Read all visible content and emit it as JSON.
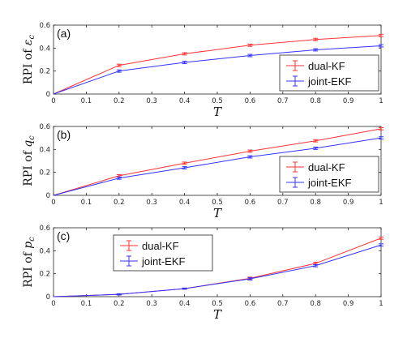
{
  "chart_data": [
    {
      "type": "line",
      "panel": "(a)",
      "ylabel_prefix": "RPI of ",
      "ylabel_symbol": "ε",
      "ylabel_sub": "c",
      "xlabel": "T",
      "x": [
        0,
        0.2,
        0.4,
        0.6,
        0.8,
        1
      ],
      "xticks": [
        "0",
        "0.1",
        "0.2",
        "0.3",
        "0.4",
        "0.5",
        "0.6",
        "0.7",
        "0.8",
        "0.9",
        "1"
      ],
      "xlim": [
        0,
        1
      ],
      "ylim": [
        0,
        0.6
      ],
      "yticks": [
        "0",
        "0.2",
        "0.4",
        "0.6"
      ],
      "legend_position": "lower-right",
      "series": [
        {
          "name": "dual-KF",
          "color": "#ff3333",
          "values": [
            0,
            0.25,
            0.35,
            0.425,
            0.475,
            0.51
          ],
          "err": [
            0,
            0.01,
            0.01,
            0.01,
            0.01,
            0.01
          ]
        },
        {
          "name": "joint-EKF",
          "color": "#3333ff",
          "values": [
            0,
            0.2,
            0.275,
            0.335,
            0.385,
            0.42
          ],
          "err": [
            0,
            0.01,
            0.01,
            0.01,
            0.01,
            0.01
          ]
        }
      ]
    },
    {
      "type": "line",
      "panel": "(b)",
      "ylabel_prefix": "RPI of ",
      "ylabel_symbol": "q",
      "ylabel_sub": "c",
      "xlabel": "T",
      "x": [
        0,
        0.2,
        0.4,
        0.6,
        0.8,
        1
      ],
      "xticks": [
        "0",
        "0.1",
        "0.2",
        "0.3",
        "0.4",
        "0.5",
        "0.6",
        "0.7",
        "0.8",
        "0.9",
        "1"
      ],
      "xlim": [
        0,
        1
      ],
      "ylim": [
        0,
        0.6
      ],
      "yticks": [
        "0",
        "0.2",
        "0.4",
        "0.6"
      ],
      "legend_position": "lower-right",
      "series": [
        {
          "name": "dual-KF",
          "color": "#ff3333",
          "values": [
            0,
            0.17,
            0.28,
            0.385,
            0.475,
            0.58
          ],
          "err": [
            0,
            0.01,
            0.01,
            0.01,
            0.01,
            0.01
          ]
        },
        {
          "name": "joint-EKF",
          "color": "#3333ff",
          "values": [
            0,
            0.15,
            0.24,
            0.335,
            0.41,
            0.5
          ],
          "err": [
            0,
            0.01,
            0.01,
            0.01,
            0.01,
            0.01
          ]
        }
      ]
    },
    {
      "type": "line",
      "panel": "(c)",
      "ylabel_prefix": "RPI of ",
      "ylabel_symbol": "p",
      "ylabel_sub": "c",
      "xlabel": "T",
      "x": [
        0,
        0.2,
        0.4,
        0.6,
        0.8,
        1
      ],
      "xticks": [
        "0",
        "0.1",
        "0.2",
        "0.3",
        "0.4",
        "0.5",
        "0.6",
        "0.7",
        "0.8",
        "0.9",
        "1"
      ],
      "xlim": [
        0,
        1
      ],
      "ylim": [
        0,
        0.6
      ],
      "yticks": [
        "0",
        "0.2",
        "0.4",
        "0.6"
      ],
      "legend_position": "upper-left",
      "series": [
        {
          "name": "dual-KF",
          "color": "#ff3333",
          "values": [
            0,
            0.02,
            0.07,
            0.16,
            0.29,
            0.51
          ],
          "err": [
            0,
            0.005,
            0.005,
            0.01,
            0.01,
            0.01
          ]
        },
        {
          "name": "joint-EKF",
          "color": "#3333ff",
          "values": [
            0,
            0.02,
            0.07,
            0.155,
            0.27,
            0.45
          ],
          "err": [
            0,
            0.005,
            0.005,
            0.01,
            0.01,
            0.01
          ]
        }
      ]
    }
  ]
}
